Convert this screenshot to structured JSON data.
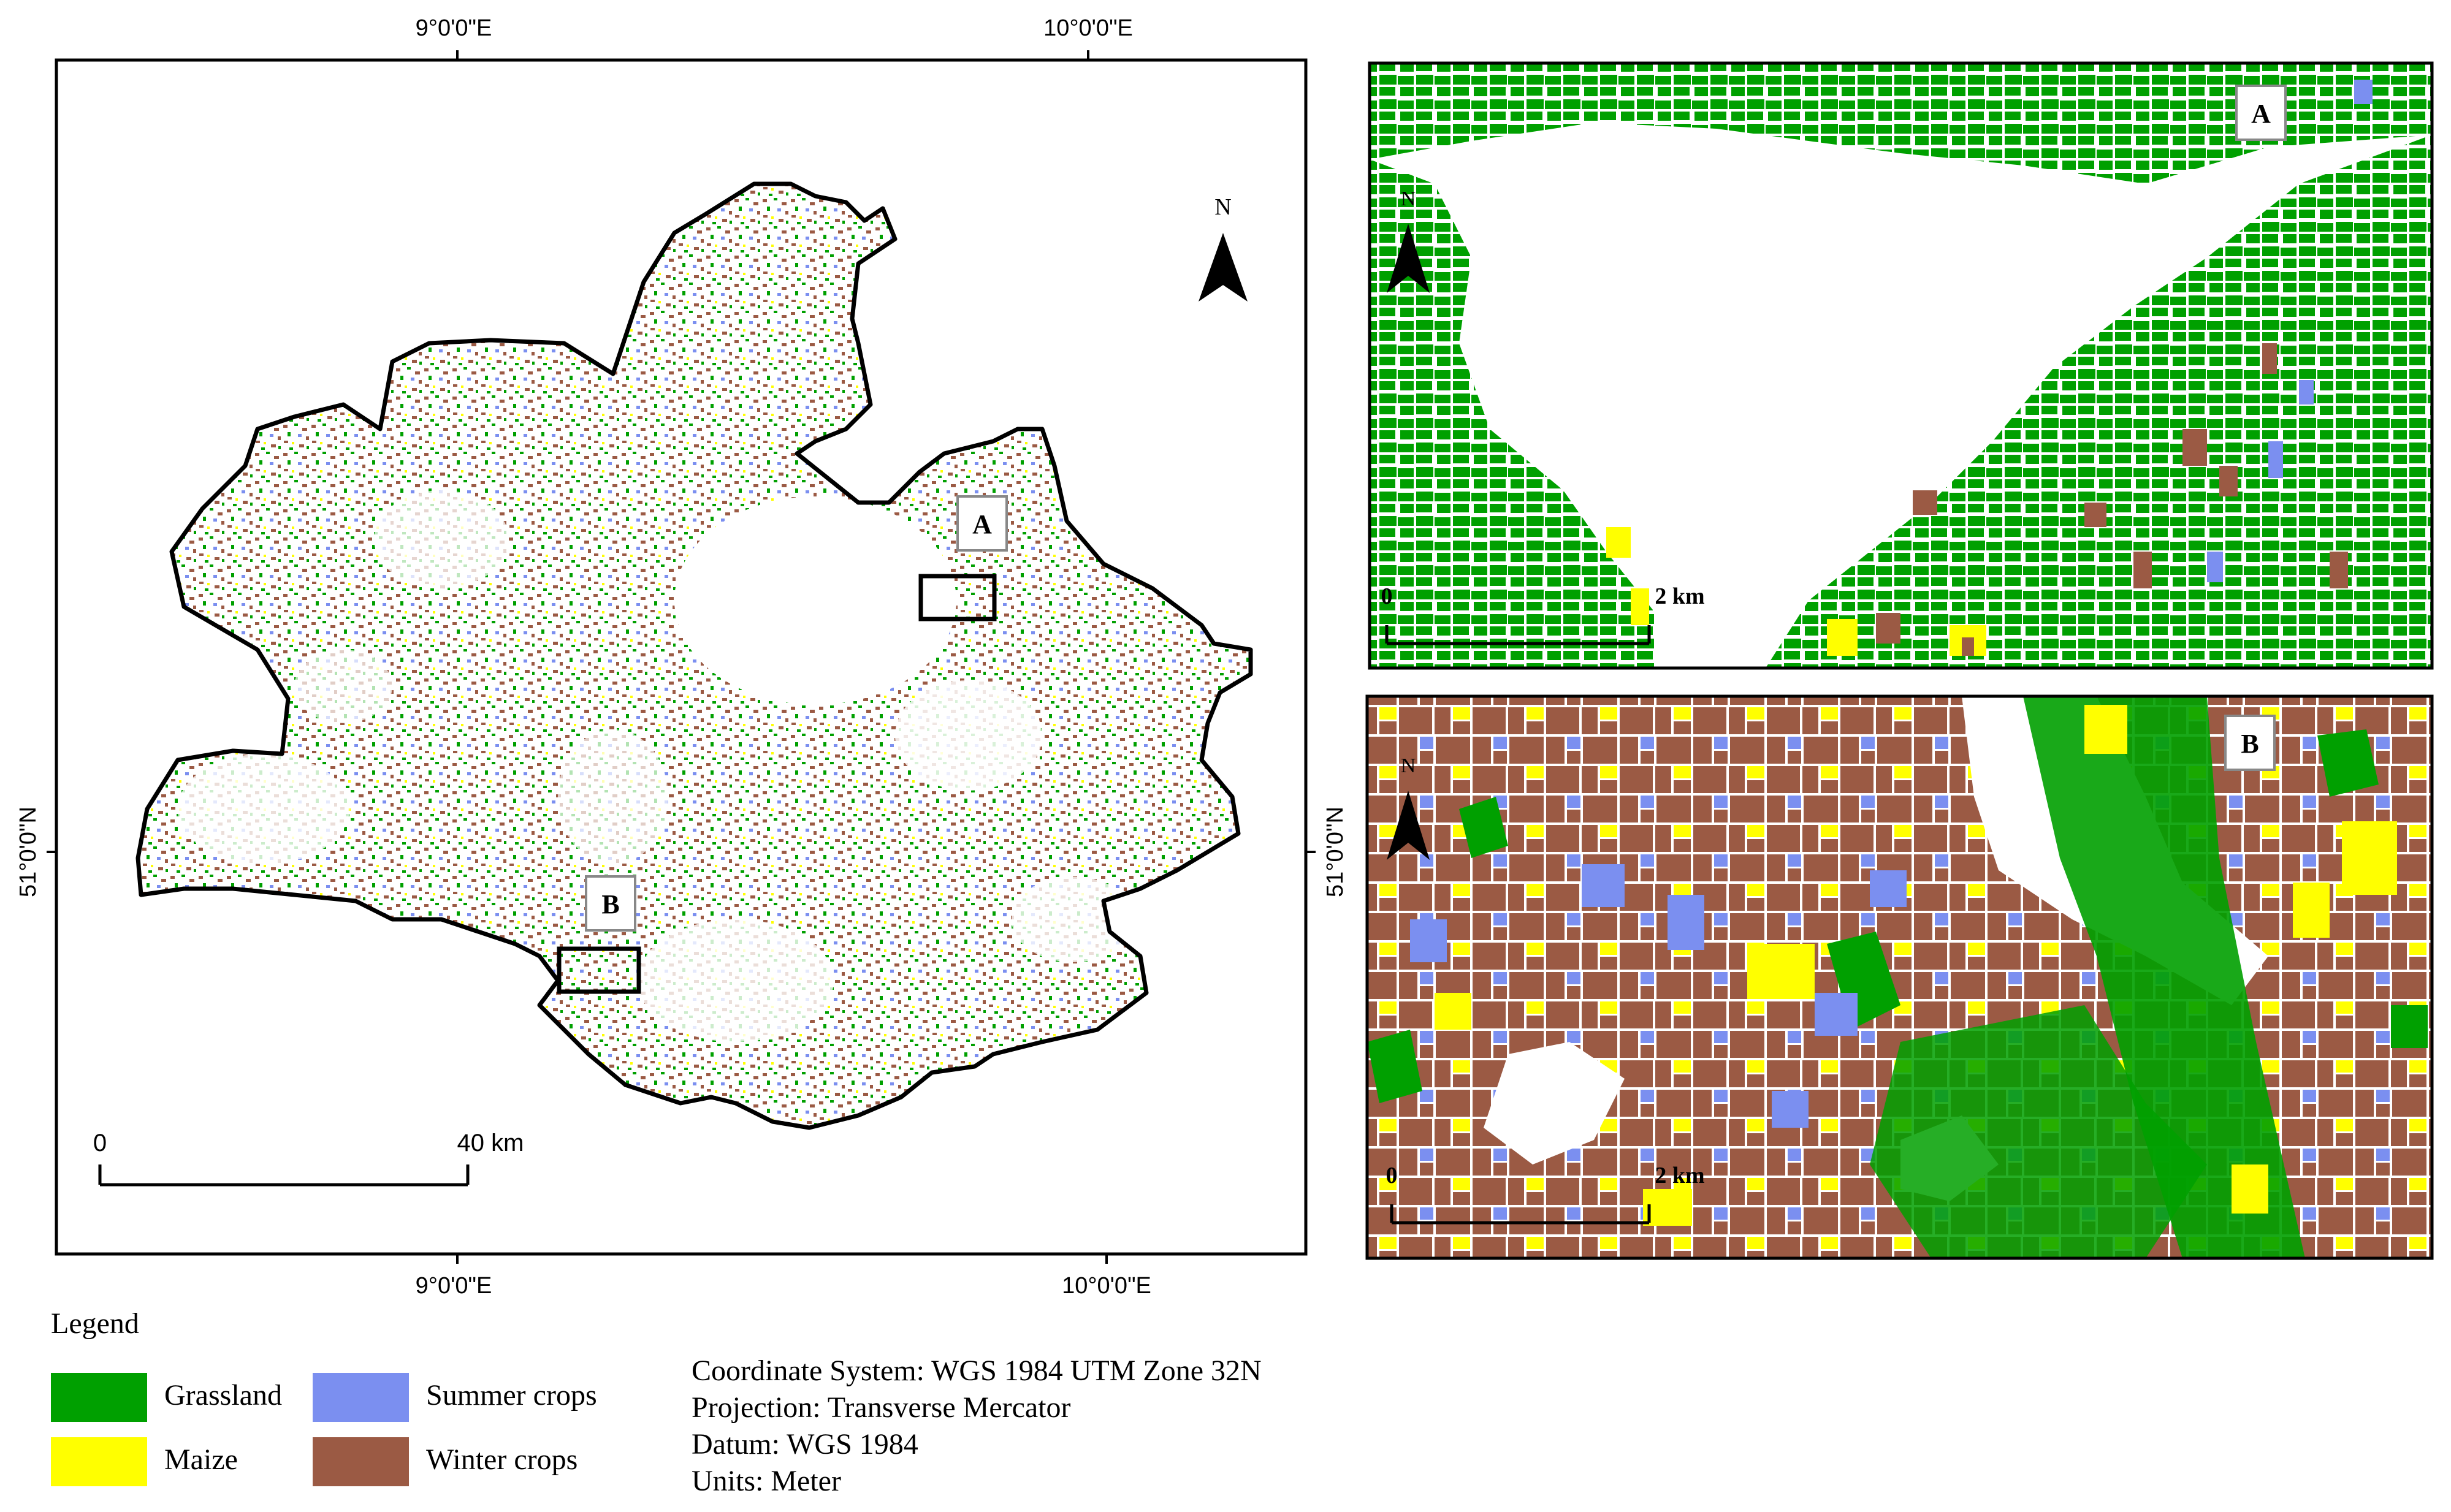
{
  "main_map": {
    "graticule_top": [
      "9°0'0\"E",
      "10°0'0\"E"
    ],
    "graticule_bottom": [
      "9°0'0\"E",
      "10°0'0\"E"
    ],
    "graticule_left": "51°0'0\"N",
    "graticule_right": "51°0'0\"N",
    "north_label": "N",
    "scale_zero": "0",
    "scale_end": "40 km",
    "box_a_label": "A",
    "box_b_label": "B"
  },
  "inset_a": {
    "label": "A",
    "north_label": "N",
    "scale_zero": "0",
    "scale_end": "2 km"
  },
  "inset_b": {
    "label": "B",
    "north_label": "N",
    "scale_zero": "0",
    "scale_end": "2 km"
  },
  "legend": {
    "title": "Legend",
    "items": [
      {
        "label": "Grassland",
        "color": "#00a000"
      },
      {
        "label": "Summer crops",
        "color": "#7b8ff0"
      },
      {
        "label": "Maize",
        "color": "#ffff00"
      },
      {
        "label": "Winter crops",
        "color": "#9b5a44"
      }
    ]
  },
  "info": {
    "coordinate_system": "Coordinate System: WGS 1984 UTM Zone 32N",
    "projection": "Projection: Transverse Mercator",
    "datum": "Datum: WGS 1984",
    "units": "Units: Meter"
  },
  "colors": {
    "grassland": "#00a000",
    "summer": "#7b8ff0",
    "maize": "#ffff00",
    "winter": "#9b5a44",
    "frame": "#000000",
    "background": "#ffffff"
  }
}
